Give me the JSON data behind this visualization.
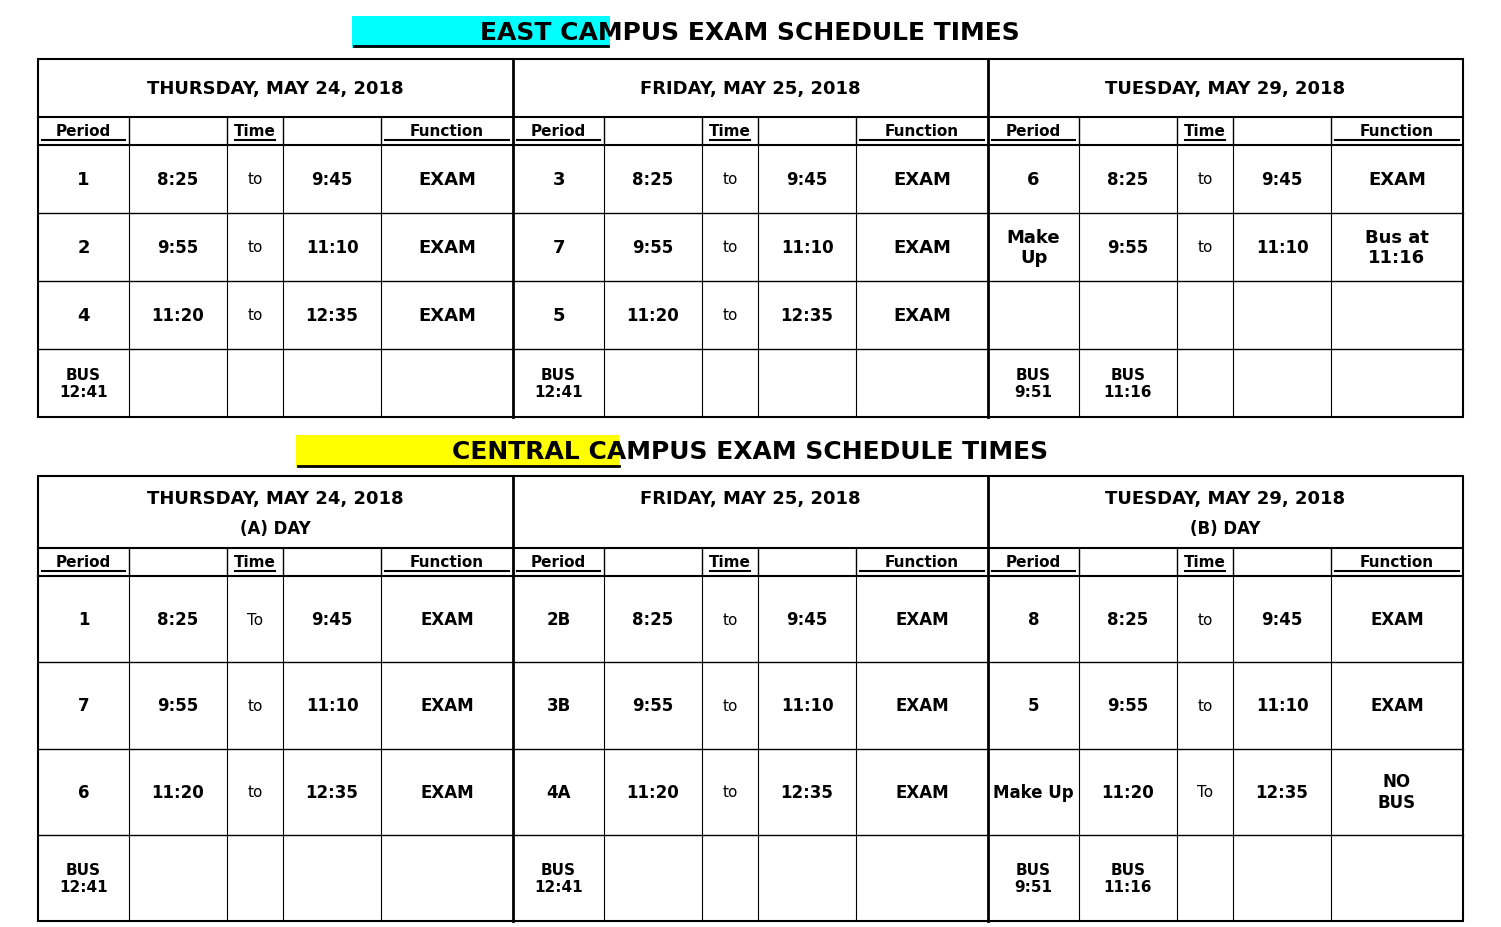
{
  "title1": "EAST CAMPUS EXAM SCHEDULE TIMES",
  "title1_highlight": "EAST CAMPUS",
  "title2": "CENTRAL CAMPUS EXAM SCHEDULE TIMES",
  "title2_highlight": "CENTRAL CAMPUS",
  "highlight_color_1": "#00FFFF",
  "highlight_color_2": "#FFFF00",
  "background": "#FFFFFF",
  "east_table": {
    "day_headers": [
      "THURSDAY, MAY 24, 2018",
      "FRIDAY, MAY 25, 2018",
      "TUESDAY, MAY 29, 2018"
    ],
    "col_headers": [
      "Period",
      "Time",
      "Function"
    ]
  },
  "central_table": {
    "day_headers": [
      "THURSDAY, MAY 24, 2018",
      "FRIDAY, MAY 25, 2018",
      "TUESDAY, MAY 29, 2018"
    ],
    "sub_headers": [
      "(A) DAY",
      "",
      "(B) DAY"
    ],
    "col_headers": [
      "Period",
      "Time",
      "Function"
    ]
  },
  "east_row_data": [
    [
      [
        "1",
        "8:25",
        "to",
        "9:45",
        "EXAM"
      ],
      [
        "3",
        "8:25",
        "to",
        "9:45",
        "EXAM"
      ],
      [
        "6",
        "8:25",
        "to",
        "9:45",
        "EXAM"
      ]
    ],
    [
      [
        "2",
        "9:55",
        "to",
        "11:10",
        "EXAM"
      ],
      [
        "7",
        "9:55",
        "to",
        "11:10",
        "EXAM"
      ],
      [
        "Make\nUp",
        "9:55",
        "to",
        "11:10",
        "Bus at\n11:16"
      ]
    ],
    [
      [
        "4",
        "11:20",
        "to",
        "12:35",
        "EXAM"
      ],
      [
        "5",
        "11:20",
        "to",
        "12:35",
        "EXAM"
      ],
      [
        "",
        "",
        "",
        "",
        ""
      ]
    ],
    [
      [
        "BUS\n12:41",
        "",
        "",
        "",
        ""
      ],
      [
        "BUS\n12:41",
        "",
        "",
        "",
        ""
      ],
      [
        "BUS\n9:51",
        "BUS\n11:16",
        "",
        "",
        ""
      ]
    ]
  ],
  "central_row_data": [
    [
      [
        "1",
        "8:25",
        "To",
        "9:45",
        "EXAM"
      ],
      [
        "2B",
        "8:25",
        "to",
        "9:45",
        "EXAM"
      ],
      [
        "8",
        "8:25",
        "to",
        "9:45",
        "EXAM"
      ]
    ],
    [
      [
        "7",
        "9:55",
        "to",
        "11:10",
        "EXAM"
      ],
      [
        "3B",
        "9:55",
        "to",
        "11:10",
        "EXAM"
      ],
      [
        "5",
        "9:55",
        "to",
        "11:10",
        "EXAM"
      ]
    ],
    [
      [
        "6",
        "11:20",
        "to",
        "12:35",
        "EXAM"
      ],
      [
        "4A",
        "11:20",
        "to",
        "12:35",
        "EXAM"
      ],
      [
        "Make Up",
        "11:20",
        "To",
        "12:35",
        "NO\nBUS"
      ]
    ],
    [
      [
        "BUS\n12:41",
        "",
        "",
        "",
        ""
      ],
      [
        "BUS\n12:41",
        "",
        "",
        "",
        ""
      ],
      [
        "BUS\n9:51",
        "BUS\n11:16",
        "",
        "",
        ""
      ]
    ]
  ]
}
